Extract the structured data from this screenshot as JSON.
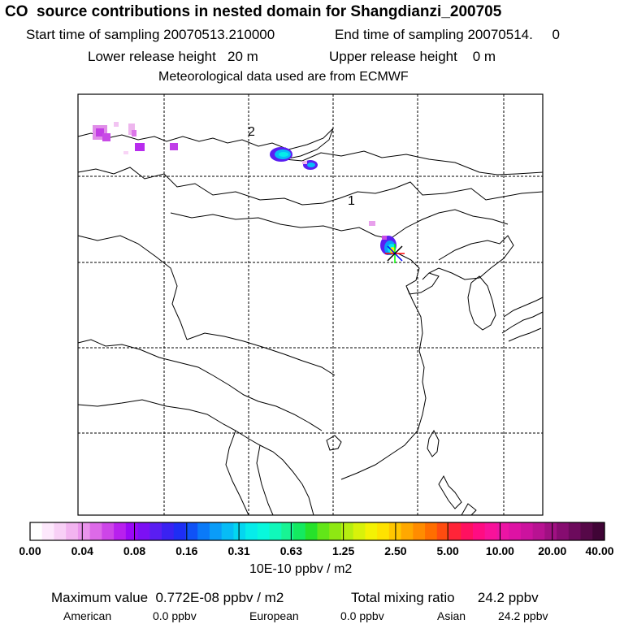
{
  "header": {
    "title": "CO  source contributions in nested domain for Shangdianzi_200705",
    "start_sampling": "Start time of sampling 20070513.210000",
    "end_sampling": "End time of sampling 20070514.     0",
    "lower_release": "Lower release height   20 m",
    "upper_release": "Upper release height    0 m",
    "met_data": "Meteorological data used are from ECMWF"
  },
  "map": {
    "label_1": "1",
    "label_2": "2",
    "receptor_symbol": "star-marker"
  },
  "colorbar": {
    "tick_labels": [
      "0.00",
      "0.04",
      "0.08",
      "0.16",
      "0.31",
      "0.63",
      "1.25",
      "2.50",
      "5.00",
      "10.00",
      "20.00",
      "40.00"
    ],
    "unit": "10E-10 ppbv / m2",
    "colors": [
      "#ffffff",
      "#fde8fc",
      "#f8d0f6",
      "#f2b4f0",
      "#ea94ec",
      "#dd6ae8",
      "#cd45e8",
      "#b820ee",
      "#9a08f6",
      "#7c10f4",
      "#5a1ef2",
      "#3a22f2",
      "#1e2ef4",
      "#0f52f6",
      "#0a7af8",
      "#0a9cf8",
      "#07bcf6",
      "#04d6f0",
      "#06ecea",
      "#08f8dc",
      "#10f8ba",
      "#18f494",
      "#14ea60",
      "#26e22a",
      "#62e618",
      "#8ee812",
      "#b6ee10",
      "#d8f20a",
      "#f4f204",
      "#fee200",
      "#ffc600",
      "#ffa800",
      "#ff8c00",
      "#ff6e00",
      "#ff4c10",
      "#ff2438",
      "#ff1060",
      "#ff0c82",
      "#f8129a",
      "#ec14a4",
      "#de12a4",
      "#cc129e",
      "#b81292",
      "#a01082",
      "#860c70",
      "#6c0a5c",
      "#560848",
      "#400436"
    ]
  },
  "stats": {
    "maximum_value": "Maximum value  0.772E-08 ppbv / m2",
    "total_mixing_ratio": "Total mixing ratio      24.2 ppbv",
    "american_label": "American",
    "american_value": "0.0 ppbv",
    "european_label": "European",
    "european_value": "0.0 ppbv",
    "asian_label": "Asian",
    "asian_value": "24.2 ppbv"
  }
}
